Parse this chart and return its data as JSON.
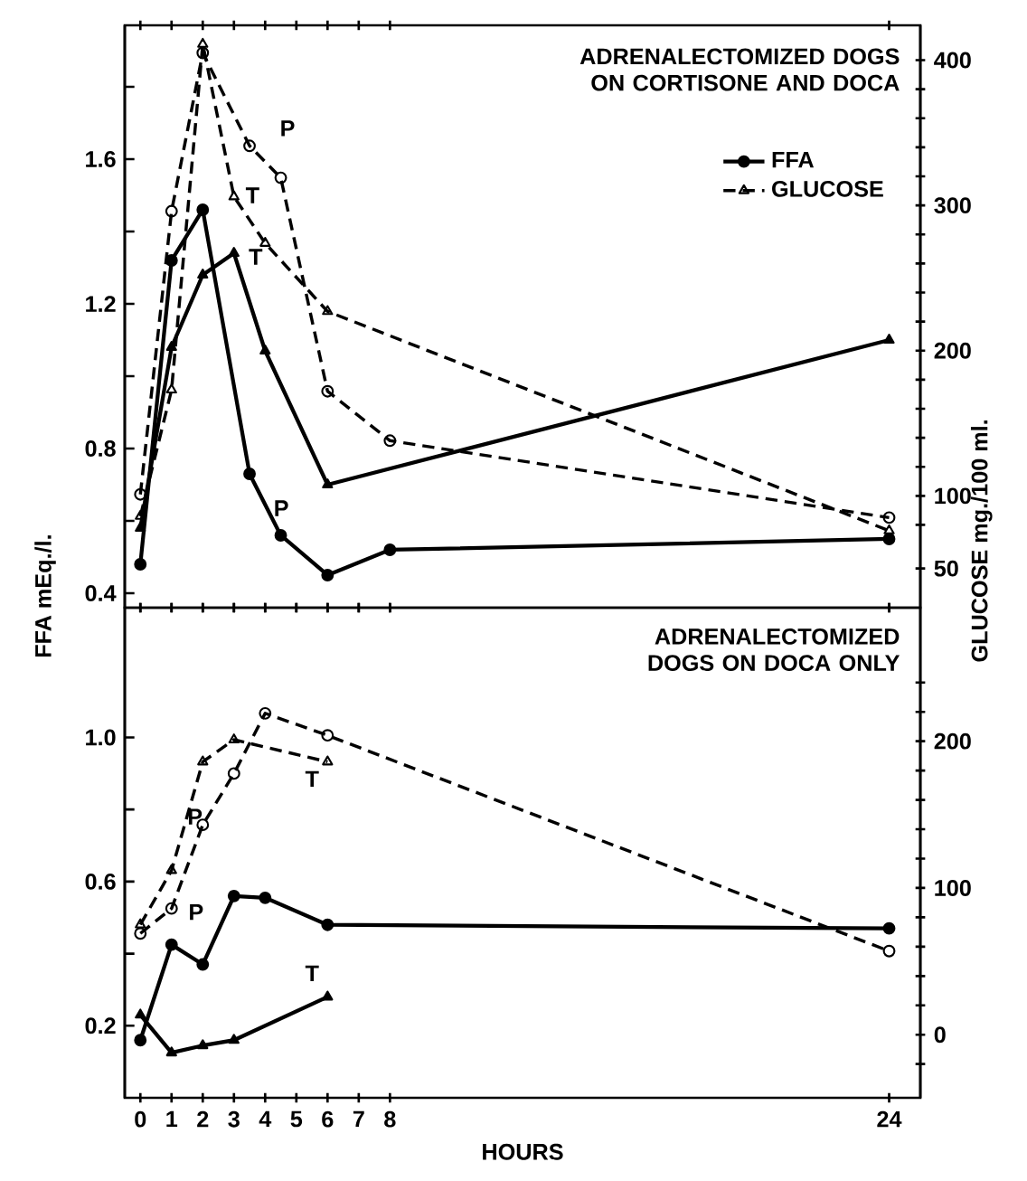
{
  "chart_data": [
    {
      "type": "line",
      "title": "ADRENALECTOMIZED DOGS ON CORTISONE AND DOCA",
      "ylabel": "FFA mEq./l.",
      "y2label": "GLUCOSE mg./100 ml.",
      "legend": "top right",
      "tick_labels": "y",
      "xlim": [
        -0.5,
        25
      ],
      "xticks": [
        0,
        1,
        2,
        3,
        4,
        5,
        6,
        7,
        8,
        24
      ],
      "ylim": [
        0.36,
        1.97
      ],
      "yticks": [
        0.4,
        {
          "value": 0.6,
          "label": null
        },
        0.8,
        {
          "value": 1.0,
          "label": null
        },
        1.2,
        {
          "value": 1.4,
          "label": null
        },
        1.6,
        {
          "value": 1.8,
          "label": null
        }
      ],
      "y2lim": [
        23,
        424
      ],
      "y2ticks": [
        50,
        {
          "value": 80,
          "label": null
        },
        100,
        {
          "value": 120,
          "label": null
        },
        {
          "value": 140,
          "label": null
        },
        {
          "value": 160,
          "label": null
        },
        {
          "value": 180,
          "label": null
        },
        200,
        {
          "value": 220,
          "label": null
        },
        {
          "value": 240,
          "label": null
        },
        {
          "value": 260,
          "label": null
        },
        {
          "value": 280,
          "label": null
        },
        300,
        {
          "value": 320,
          "label": null
        },
        {
          "value": 340,
          "label": null
        },
        {
          "value": 360,
          "label": null
        },
        {
          "value": 380,
          "label": null
        },
        400
      ],
      "series": [
        {
          "name": "FFA",
          "color": "#000000",
          "axis": "y",
          "marker": "circle",
          "line_style": "solid",
          "x": [
            0,
            1,
            2,
            3.5,
            4.5,
            6,
            8,
            24
          ],
          "values": [
            0.48,
            1.32,
            1.46,
            0.73,
            0.56,
            0.45,
            0.52,
            0.55
          ]
        },
        {
          "color": "#000000",
          "axis": "y",
          "marker": "triangle",
          "line_style": "solid",
          "x": [
            0,
            1,
            2,
            3,
            4,
            6,
            24
          ],
          "values": [
            0.58,
            1.08,
            1.28,
            1.34,
            1.07,
            0.7,
            1.1
          ]
        },
        {
          "color": "#000000",
          "axis": "y2",
          "marker": "circle",
          "line_style": "dashed",
          "x": [
            0,
            1,
            2,
            3.5,
            4.5,
            6,
            8,
            24
          ],
          "values": [
            101,
            296,
            405,
            341,
            319,
            172,
            138,
            85
          ]
        },
        {
          "name": "GLUCOSE",
          "color": "#000000",
          "axis": "y2",
          "marker": "triangle",
          "line_style": "dashed",
          "x": [
            0,
            1,
            2,
            3,
            4,
            6,
            24
          ],
          "values": [
            86,
            173,
            411,
            306,
            274,
            227,
            76
          ]
        }
      ],
      "annotations": [
        "P",
        "T",
        "T",
        "P"
      ]
    },
    {
      "type": "line",
      "title": "ADRENALECTOMIZED DOGS ON DOCA ONLY",
      "xlabel": "HOURS",
      "xlim": [
        -0.5,
        25
      ],
      "xticks": [
        0,
        1,
        2,
        3,
        4,
        5,
        6,
        7,
        8,
        24
      ],
      "ylim": [
        0,
        1.36
      ],
      "yticks": [
        0.2,
        {
          "value": 0.4,
          "label": null
        },
        0.6,
        {
          "value": 0.8,
          "label": null
        },
        {
          "value": 1,
          "label": "1.0"
        }
      ],
      "y2lim": [
        -43,
        291
      ],
      "y2ticks": [
        {
          "value": -20,
          "label": null
        },
        0,
        {
          "value": 20,
          "label": null
        },
        {
          "value": 40,
          "label": null
        },
        {
          "value": 60,
          "label": null
        },
        {
          "value": 80,
          "label": null
        },
        100,
        {
          "value": 120,
          "label": null
        },
        {
          "value": 140,
          "label": null
        },
        {
          "value": 160,
          "label": null
        },
        {
          "value": 180,
          "label": null
        },
        200,
        {
          "value": 220,
          "label": null
        },
        {
          "value": 240,
          "label": null
        }
      ],
      "series": [
        {
          "color": "#000000",
          "axis": "y",
          "marker": "circle",
          "line_style": "solid",
          "x": [
            0,
            1,
            2,
            3,
            4,
            6,
            24
          ],
          "values": [
            0.16,
            0.425,
            0.37,
            0.56,
            0.555,
            0.48,
            0.47
          ]
        },
        {
          "color": "#000000",
          "axis": "y",
          "marker": "triangle",
          "line_style": "solid",
          "x": [
            0,
            1,
            2,
            3,
            6
          ],
          "values": [
            0.23,
            0.125,
            0.145,
            0.16,
            0.28
          ]
        },
        {
          "color": "#000000",
          "axis": "y2",
          "marker": "circle",
          "line_style": "dashed",
          "x": [
            0,
            1,
            2,
            3,
            4,
            6,
            24
          ],
          "values": [
            69,
            86,
            143,
            178,
            219,
            204,
            57
          ]
        },
        {
          "color": "#000000",
          "axis": "y2",
          "marker": "triangle",
          "line_style": "dashed",
          "x": [
            0,
            1,
            2,
            3,
            6
          ],
          "values": [
            75,
            112,
            186,
            201,
            186
          ]
        }
      ],
      "annotations": [
        "P",
        "P",
        "T",
        "T"
      ]
    }
  ]
}
